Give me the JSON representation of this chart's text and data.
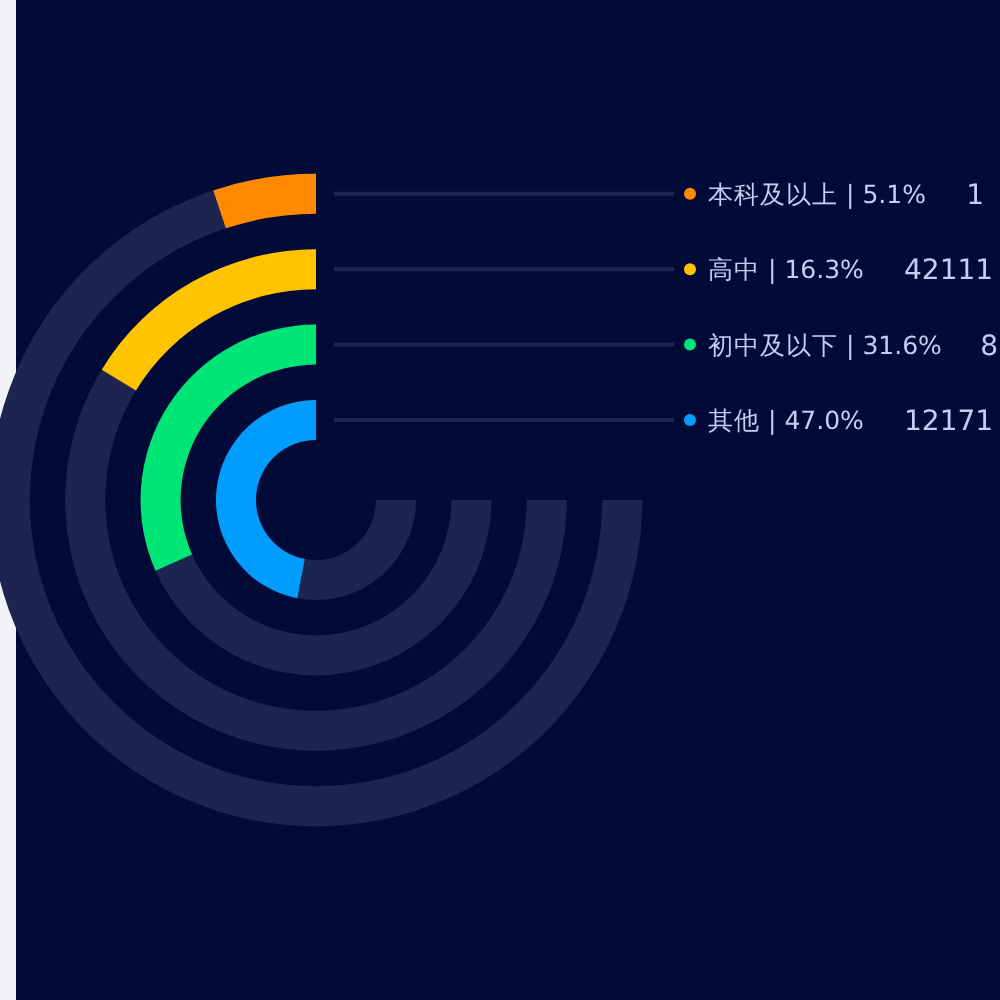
{
  "chart_data": {
    "type": "other",
    "categories": [
      "本科及以上 |",
      "高中 |",
      "初中及以下 |",
      "其他 |"
    ],
    "values": [
      5.1,
      16.3,
      31.6,
      47.0
    ],
    "colors": [
      "#ff8a00",
      "#ffc300",
      "#00e676",
      "#009dff"
    ],
    "value_labels": [
      "5.1%",
      "16.3%",
      "31.6%",
      "47.0%"
    ],
    "annotations": [
      "1",
      "42111",
      "8",
      "12171"
    ]
  }
}
